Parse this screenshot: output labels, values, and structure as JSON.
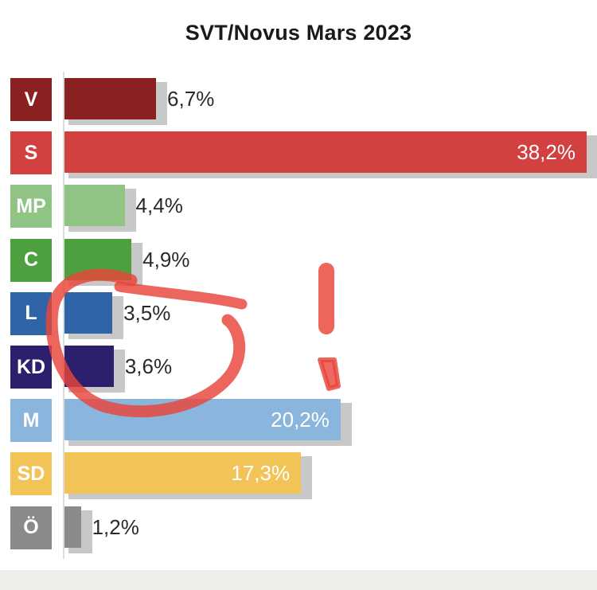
{
  "chart_data": {
    "type": "bar",
    "orientation": "horizontal",
    "title": "SVT/Novus Mars 2023",
    "categories": [
      "V",
      "S",
      "MP",
      "C",
      "L",
      "KD",
      "M",
      "SD",
      "Ö"
    ],
    "values": [
      6.7,
      38.2,
      4.4,
      4.9,
      3.5,
      3.6,
      20.2,
      17.3,
      1.2
    ],
    "labels": [
      "6,7%",
      "38,2%",
      "4,4%",
      "4,9%",
      "3,5%",
      "3,6%",
      "20,2%",
      "17,3%",
      "1,2%"
    ],
    "colors": [
      "#8a2020",
      "#d2403f",
      "#8fc485",
      "#4e9f3d",
      "#2f64a6",
      "#2c1f6e",
      "#8ab6de",
      "#f2c457",
      "#8a8a8a"
    ],
    "xlim": [
      0,
      38.2
    ],
    "grid": false,
    "legend": "none"
  },
  "annotation": {
    "color": "#e9443a",
    "description_shapes": [
      "circle-around-L-KD",
      "exclamation-mark"
    ]
  }
}
